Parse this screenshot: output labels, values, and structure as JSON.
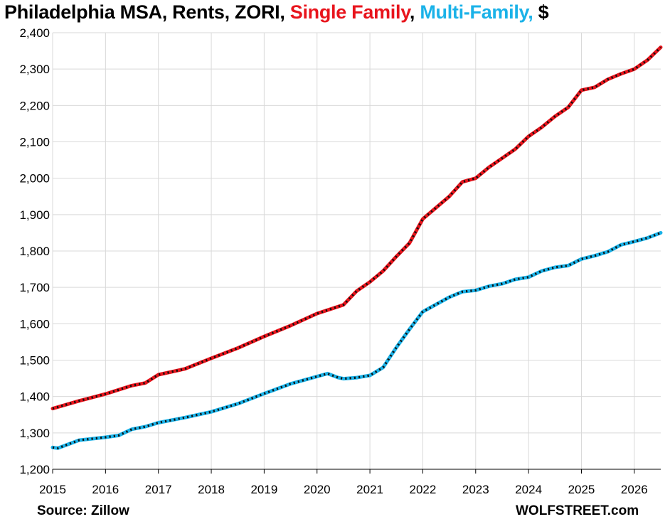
{
  "chart_data": {
    "type": "line",
    "title": {
      "part1": "Philadelphia MSA, Rents, ZORI, ",
      "single": "Single Family",
      "sep": ", ",
      "multi": "Multi-Family,",
      "part2": " $"
    },
    "ylim": [
      1200,
      2400
    ],
    "xlim": [
      2015.0,
      2026.5
    ],
    "y_ticks": [
      "1,200",
      "1,300",
      "1,400",
      "1,500",
      "1,600",
      "1,700",
      "1,800",
      "1,900",
      "2,000",
      "2,100",
      "2,200",
      "2,300",
      "2,400"
    ],
    "x_ticks": [
      "2015",
      "2016",
      "2017",
      "2018",
      "2019",
      "2020",
      "2021",
      "2022",
      "2023",
      "2024",
      "2025",
      "2026"
    ],
    "grid": true,
    "colors": {
      "single_family": "#e8141c",
      "multi_family": "#1ab2e8",
      "markers": "#111111",
      "grid": "#d9d9d9"
    },
    "series": [
      {
        "name": "Single Family",
        "x": [
          2015.0,
          2015.5,
          2016.0,
          2016.5,
          2016.75,
          2017.0,
          2017.5,
          2018.0,
          2018.5,
          2019.0,
          2019.5,
          2020.0,
          2020.5,
          2020.75,
          2021.0,
          2021.25,
          2021.5,
          2021.75,
          2022.0,
          2022.5,
          2022.75,
          2023.0,
          2023.25,
          2023.5,
          2023.75,
          2024.0,
          2024.25,
          2024.5,
          2024.75,
          2025.0,
          2025.25,
          2025.5,
          2025.75,
          2026.0,
          2026.25,
          2026.5
        ],
        "values": [
          1367,
          1388,
          1407,
          1430,
          1437,
          1460,
          1476,
          1505,
          1533,
          1565,
          1595,
          1628,
          1652,
          1690,
          1715,
          1745,
          1785,
          1822,
          1888,
          1950,
          1990,
          2000,
          2030,
          2055,
          2080,
          2115,
          2140,
          2170,
          2195,
          2242,
          2250,
          2272,
          2287,
          2300,
          2325,
          2360
        ]
      },
      {
        "name": "Multi-Family",
        "x": [
          2015.0,
          2015.1,
          2015.5,
          2016.0,
          2016.25,
          2016.5,
          2016.75,
          2017.0,
          2017.5,
          2018.0,
          2018.5,
          2019.0,
          2019.5,
          2020.0,
          2020.2,
          2020.4,
          2020.5,
          2020.75,
          2021.0,
          2021.25,
          2021.5,
          2021.75,
          2022.0,
          2022.5,
          2022.75,
          2023.0,
          2023.25,
          2023.5,
          2023.75,
          2024.0,
          2024.25,
          2024.5,
          2024.75,
          2025.0,
          2025.25,
          2025.5,
          2025.75,
          2026.0,
          2026.25,
          2026.5
        ],
        "values": [
          1260,
          1258,
          1280,
          1288,
          1293,
          1310,
          1317,
          1328,
          1342,
          1358,
          1380,
          1408,
          1435,
          1455,
          1463,
          1452,
          1449,
          1452,
          1458,
          1480,
          1535,
          1585,
          1633,
          1673,
          1688,
          1692,
          1703,
          1710,
          1722,
          1728,
          1745,
          1755,
          1760,
          1778,
          1787,
          1798,
          1817,
          1826,
          1836,
          1850
        ]
      }
    ]
  },
  "footer": {
    "source": "Source: Zillow",
    "brand": "WOLFSTREET.com"
  }
}
